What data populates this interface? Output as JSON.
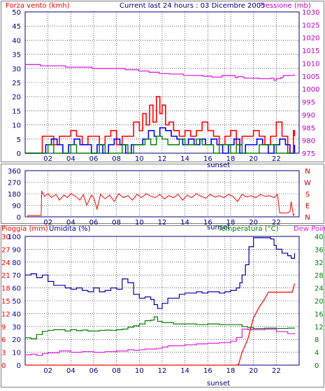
{
  "chart_data": [
    {
      "type": "line",
      "title": "Current last 24 hours : 03 Dicembre 2005",
      "left_label": "Forza vento (kmh)",
      "right_label": "Pressione (mb)",
      "left_ticks": [
        "0",
        "5",
        "10",
        "15",
        "20",
        "25",
        "30",
        "35",
        "40",
        "45",
        "50"
      ],
      "right_ticks": [
        "975",
        "980",
        "985",
        "990",
        "995",
        "1000",
        "1005",
        "1010",
        "1015",
        "1020",
        "1025",
        "1030"
      ],
      "x_ticks": [
        "02",
        "04",
        "06",
        "08",
        "10",
        "12",
        "14",
        "16",
        "18",
        "20",
        "22"
      ],
      "x_marker": "sunset",
      "ylim_left": [
        0,
        50
      ],
      "ylim_right": [
        975,
        1030
      ],
      "x_range_hours": [
        0,
        24
      ],
      "colors": {
        "wind_gust": "#ff0000",
        "wind_avg": "#0000ff",
        "wind_min": "#008000",
        "pressure": "#e020e0",
        "pressure_label": "#c000c0"
      },
      "series": [
        {
          "key": "pressure",
          "x": [
            0,
            1.3,
            1.35,
            3.5,
            3.55,
            5.8,
            5.85,
            8.7,
            8.75,
            9.9,
            9.95,
            10.8,
            10.85,
            11.7,
            11.75,
            12.6,
            12.65,
            13.8,
            13.85,
            15.5,
            15.55,
            16.3,
            16.35,
            17.2,
            17.25,
            18.3,
            18.4,
            18.6,
            19.1,
            19.2,
            20.5,
            21.5,
            21.8,
            22,
            22.4,
            22.6,
            23.1,
            23.6
          ],
          "values": [
            1009.5,
            1009.5,
            1009,
            1009,
            1008.5,
            1008.5,
            1008,
            1008,
            1007.5,
            1007.5,
            1007,
            1007,
            1006.5,
            1006.5,
            1006,
            1006,
            1005.8,
            1005.8,
            1005.3,
            1005.3,
            1005,
            1005,
            1004.6,
            1004.6,
            1005.2,
            1005.2,
            1004.4,
            1004.8,
            1004.6,
            1004.2,
            1004,
            1004.2,
            1003.4,
            1004,
            1004.4,
            1005.2,
            1005.3,
            1005.6
          ]
        },
        {
          "key": "wind_gust",
          "x": [
            0,
            1.3,
            1.5,
            2,
            2.5,
            3,
            3.5,
            4,
            4.5,
            5,
            5.5,
            6,
            6.5,
            7,
            7.5,
            8,
            8.5,
            9,
            9.5,
            10,
            10.3,
            10.6,
            10.9,
            11.2,
            11.5,
            11.8,
            12,
            12.3,
            12.6,
            13,
            13.5,
            14,
            14.5,
            15,
            15.5,
            16,
            16.5,
            17,
            17.5,
            18,
            18.5,
            19,
            19.5,
            20,
            20.5,
            21,
            21.5,
            22,
            22.5,
            23,
            23.3,
            23.5,
            23.6
          ],
          "values": [
            0,
            0,
            6,
            6,
            3,
            6,
            6,
            8,
            6,
            3,
            6,
            6,
            3,
            6,
            8,
            3,
            6,
            6,
            11,
            8,
            14,
            10,
            17,
            11,
            20,
            14,
            17,
            10,
            11,
            8,
            6,
            8,
            6,
            8,
            11,
            8,
            6,
            3,
            6,
            8,
            3,
            6,
            6,
            8,
            6,
            3,
            6,
            11,
            6,
            0,
            0,
            8,
            6
          ]
        },
        {
          "key": "wind_avg",
          "x": [
            0,
            1.3,
            1.8,
            2.3,
            2.8,
            3.3,
            3.8,
            4.3,
            4.8,
            5.3,
            5.8,
            6.3,
            6.8,
            7.3,
            7.8,
            8.3,
            8.8,
            9.3,
            9.8,
            10.3,
            10.8,
            11.3,
            11.8,
            12.3,
            12.8,
            13.3,
            13.8,
            14.3,
            14.8,
            15.3,
            15.8,
            16.3,
            16.8,
            17.3,
            17.8,
            18.3,
            18.8,
            19.3,
            19.8,
            20.3,
            20.8,
            21.3,
            21.8,
            22.3,
            22.8,
            23.2,
            23.6
          ],
          "values": [
            0,
            0,
            3,
            5,
            3,
            0,
            3,
            5,
            3,
            3,
            0,
            3,
            0,
            3,
            5,
            3,
            0,
            3,
            3,
            5,
            8,
            6,
            9,
            8,
            6,
            5,
            3,
            5,
            3,
            5,
            3,
            5,
            3,
            0,
            3,
            5,
            0,
            3,
            3,
            5,
            3,
            0,
            3,
            5,
            3,
            0,
            3
          ]
        },
        {
          "key": "wind_min",
          "x": [
            0,
            1.3,
            2,
            2.5,
            3,
            4,
            4.5,
            5,
            6,
            6.5,
            7,
            8,
            8.5,
            9,
            9.5,
            10,
            10.5,
            11,
            11.5,
            12,
            12.5,
            13,
            13.5,
            14,
            14.5,
            15,
            15.5,
            16,
            16.5,
            17,
            18,
            18.5,
            19,
            20,
            20.5,
            21,
            22,
            23,
            23.6
          ],
          "values": [
            0,
            0,
            3,
            0,
            0,
            3,
            0,
            0,
            0,
            3,
            0,
            0,
            3,
            0,
            3,
            3,
            5,
            3,
            6,
            5,
            3,
            3,
            5,
            3,
            3,
            5,
            3,
            3,
            0,
            3,
            0,
            3,
            0,
            0,
            3,
            3,
            0,
            0,
            0
          ]
        }
      ]
    },
    {
      "type": "line",
      "left_ticks": [
        "0",
        "90",
        "180",
        "270",
        "360"
      ],
      "right_ticks": [
        "N",
        "E",
        "S",
        "W",
        "N"
      ],
      "x_ticks": [
        "02",
        "04",
        "06",
        "08",
        "10",
        "12",
        "14",
        "16",
        "18",
        "20",
        "22"
      ],
      "x_marker": "sunset",
      "ylim": [
        0,
        360
      ],
      "x_range_hours": [
        0,
        24
      ],
      "colors": {
        "wind_direction": "#ff0000"
      },
      "series": [
        {
          "key": "wind_direction",
          "x": [
            0,
            0.2,
            0.25,
            1.4,
            1.45,
            1.7,
            2,
            2.3,
            2.7,
            3,
            3.4,
            3.7,
            4,
            4.4,
            4.8,
            5.1,
            5.4,
            5.8,
            6,
            6.3,
            6.6,
            7,
            7.4,
            7.8,
            8.2,
            8.6,
            9,
            9.4,
            9.8,
            10.2,
            10.6,
            11,
            11.4,
            11.8,
            12.2,
            12.6,
            13,
            13.4,
            13.8,
            14.2,
            14.6,
            15,
            15.4,
            15.8,
            16.2,
            16.6,
            17,
            17.4,
            17.8,
            18.2,
            18.6,
            19,
            19.4,
            19.8,
            20.2,
            20.6,
            21,
            21.4,
            21.8,
            22.1,
            22.3,
            22.9,
            23.2,
            23.3,
            23.5,
            23.6
          ],
          "values": [
            0,
            0,
            10,
            10,
            200,
            160,
            180,
            150,
            175,
            130,
            170,
            150,
            180,
            160,
            130,
            175,
            90,
            170,
            150,
            60,
            175,
            140,
            170,
            120,
            180,
            150,
            165,
            130,
            175,
            150,
            180,
            160,
            150,
            175,
            140,
            165,
            150,
            175,
            130,
            170,
            150,
            180,
            160,
            145,
            175,
            155,
            165,
            150,
            175,
            160,
            120,
            175,
            155,
            165,
            150,
            175,
            160,
            165,
            150,
            175,
            30,
            30,
            40,
            120,
            10,
            20
          ]
        }
      ]
    },
    {
      "type": "line",
      "left_label_rain": "Pioggia (mm)",
      "left_label_humidity": "Umidita (%)",
      "right_label_temp": "Temperatura (°C)",
      "right_label_dew": "Dew Point",
      "rain_ticks": [
        "0",
        "3",
        "6",
        "9",
        "12",
        "15",
        "18",
        "21",
        "24",
        "27",
        "30"
      ],
      "humidity_ticks": [
        "0",
        "10",
        "20",
        "30",
        "40",
        "50",
        "60",
        "70",
        "80",
        "90",
        "100"
      ],
      "temp_ticks": [
        "0",
        "4",
        "8",
        "12",
        "16",
        "20",
        "24",
        "28",
        "32",
        "36",
        "40"
      ],
      "x_ticks": [
        "02",
        "04",
        "06",
        "08",
        "10",
        "12",
        "14",
        "16",
        "18",
        "20",
        "22"
      ],
      "x_marker": "sunset",
      "ylim_rain": [
        0,
        30
      ],
      "ylim_humidity": [
        0,
        100
      ],
      "ylim_temp": [
        0,
        40
      ],
      "x_range_hours": [
        0,
        24
      ],
      "colors": {
        "rain": "#ff0000",
        "humidity": "#0000a0",
        "temperature": "#008000",
        "dew_point": "#e020e0",
        "temp_label": "#008000",
        "rain_label": "#ff0000",
        "humidity_label": "#0000a0"
      },
      "series": [
        {
          "key": "humidity",
          "x": [
            0,
            0.5,
            1,
            1.5,
            2,
            2.5,
            3,
            3.5,
            4,
            4.5,
            5,
            5.5,
            6,
            6.5,
            7,
            7.5,
            8,
            8.5,
            9,
            9.5,
            10,
            10.5,
            11,
            11.3,
            11.6,
            12,
            12.5,
            13,
            13.5,
            14,
            14.5,
            15,
            15.5,
            16,
            16.5,
            17,
            17.5,
            18,
            18.5,
            18.8,
            19,
            19.3,
            19.6,
            20,
            20.5,
            21,
            21.5,
            21.8,
            22,
            22.5,
            23,
            23.3,
            23.6
          ],
          "values": [
            70,
            71,
            68,
            70,
            65,
            62,
            62,
            60,
            59,
            60,
            58,
            57,
            60,
            57,
            58,
            60,
            59,
            67,
            64,
            55,
            52,
            53,
            51,
            47,
            44,
            48,
            52,
            52,
            55,
            56,
            56,
            57,
            56,
            57,
            57,
            56,
            57,
            58,
            60,
            64,
            70,
            78,
            92,
            99,
            99,
            99,
            98,
            93,
            90,
            87,
            85,
            83,
            87
          ]
        },
        {
          "key": "temperature",
          "x": [
            0,
            0.5,
            1,
            1.5,
            2,
            2.5,
            3,
            3.5,
            4,
            4.5,
            5,
            5.5,
            6,
            6.5,
            7,
            7.5,
            8,
            8.5,
            9,
            9.5,
            10,
            10.5,
            11,
            11.3,
            11.6,
            12,
            12.5,
            13,
            14,
            15,
            16,
            17,
            18,
            18.5,
            19,
            19.5,
            20,
            20.5,
            21,
            22,
            23,
            23.6
          ],
          "values": [
            8.5,
            8.2,
            9.5,
            10.5,
            10.8,
            11,
            11,
            10.6,
            11,
            10.7,
            10.9,
            10.6,
            10.6,
            10.8,
            10.9,
            10.8,
            11,
            11.2,
            11.8,
            12.2,
            12.8,
            13.8,
            14,
            15,
            13.6,
            13.2,
            13.2,
            12.8,
            12.8,
            12.6,
            12.8,
            12.6,
            12.6,
            12.6,
            12,
            11.6,
            11.4,
            11.4,
            11.5,
            11.4,
            11.5,
            11.4
          ]
        },
        {
          "key": "dew_point",
          "x": [
            0,
            0.5,
            1,
            1.5,
            2,
            3,
            4,
            5,
            6,
            7,
            8,
            9,
            9.5,
            10,
            10.5,
            11,
            11.5,
            12,
            12.5,
            13,
            14,
            15,
            16,
            17,
            17.5,
            18,
            18.5,
            19,
            19.5,
            20,
            20.5,
            21,
            22,
            23,
            23.6
          ],
          "values": [
            3.2,
            3.4,
            3,
            3.6,
            3.8,
            4.4,
            4,
            4.2,
            4,
            4.2,
            4.4,
            4.8,
            4.6,
            4.8,
            5,
            5,
            5.2,
            5.6,
            6,
            6,
            6.3,
            6.6,
            6.8,
            7,
            7,
            7.4,
            8.6,
            11.2,
            11,
            11,
            11,
            11.2,
            10.4,
            9.8,
            10
          ]
        },
        {
          "key": "rain",
          "x": [
            0,
            18.5,
            18.7,
            19,
            19.5,
            20,
            20.5,
            21,
            21.3,
            22,
            23,
            23.4,
            23.6
          ],
          "values": [
            0,
            0,
            0.2,
            3,
            6,
            11,
            13.5,
            15.5,
            17,
            17,
            17,
            17,
            19
          ]
        }
      ]
    }
  ]
}
